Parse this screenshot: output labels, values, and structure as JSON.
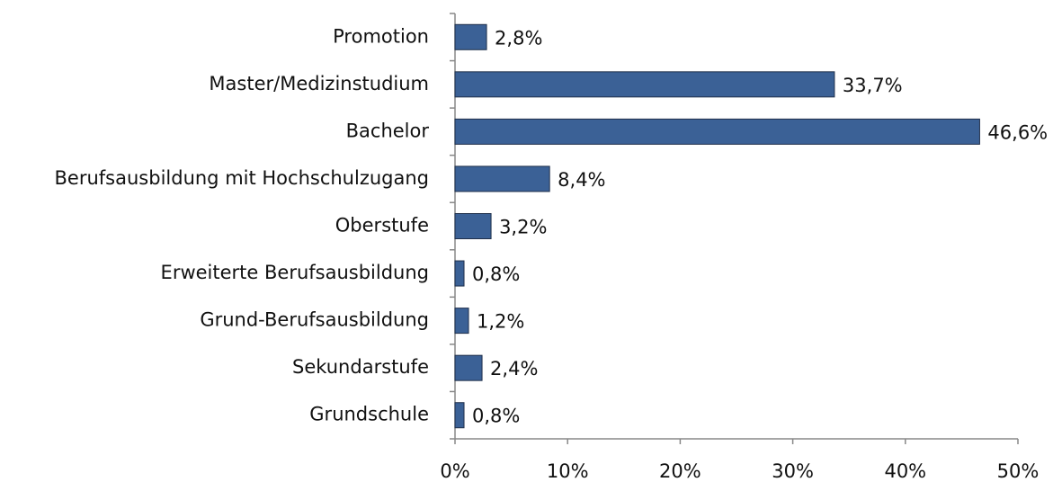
{
  "chart_data": {
    "type": "bar",
    "orientation": "horizontal",
    "categories": [
      "Promotion",
      "Master/Medizinstudium",
      "Bachelor",
      "Berufsausbildung mit Hochschulzugang",
      "Oberstufe",
      "Erweiterte Berufsausbildung",
      "Grund-Berufsausbildung",
      "Sekundarstufe",
      "Grundschule"
    ],
    "values": [
      2.8,
      33.7,
      46.6,
      8.4,
      3.2,
      0.8,
      1.2,
      2.4,
      0.8
    ],
    "value_labels": [
      "2,8%",
      "33,7%",
      "46,6%",
      "8,4%",
      "3,2%",
      "0,8%",
      "1,2%",
      "2,4%",
      "0,8%"
    ],
    "color": "#3b6196",
    "xlim": [
      0,
      50
    ],
    "xticks": [
      {
        "value": 0,
        "label": "0%"
      },
      {
        "value": 10,
        "label": "10%"
      },
      {
        "value": 20,
        "label": "20%"
      },
      {
        "value": 30,
        "label": "30%"
      },
      {
        "value": 40,
        "label": "40%"
      },
      {
        "value": 50,
        "label": "50%"
      }
    ],
    "grid": false
  }
}
